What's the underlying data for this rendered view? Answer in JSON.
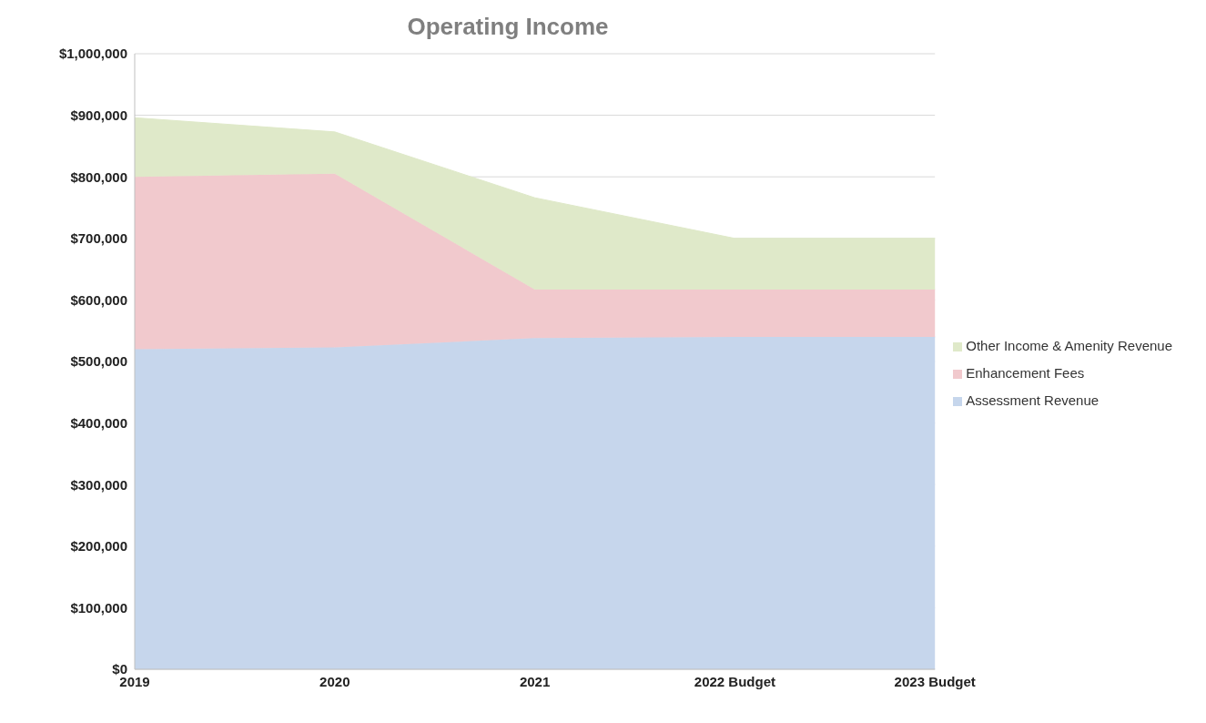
{
  "chart_data": {
    "type": "area",
    "title": "Operating Income",
    "stacked": true,
    "categories": [
      "2019",
      "2020",
      "2021",
      "2022 Budget",
      "2023 Budget"
    ],
    "series": [
      {
        "name": "Assessment Revenue",
        "color": "#c6d6ec",
        "values": [
          520000,
          523000,
          538000,
          540000,
          540000
        ]
      },
      {
        "name": "Enhancement Fees",
        "color": "#f1c9cd",
        "values": [
          280000,
          282000,
          79000,
          77000,
          77000
        ]
      },
      {
        "name": "Other Income & Amenity Revenue",
        "color": "#dfe9c9",
        "values": [
          96000,
          68000,
          149000,
          83000,
          83000
        ]
      }
    ],
    "ylim": [
      0,
      1000000
    ],
    "yticks": [
      {
        "value": 0,
        "label": "$0"
      },
      {
        "value": 100000,
        "label": "$100,000"
      },
      {
        "value": 200000,
        "label": "$200,000"
      },
      {
        "value": 300000,
        "label": "$300,000"
      },
      {
        "value": 400000,
        "label": "$400,000"
      },
      {
        "value": 500000,
        "label": "$500,000"
      },
      {
        "value": 600000,
        "label": "$600,000"
      },
      {
        "value": 700000,
        "label": "$700,000"
      },
      {
        "value": 800000,
        "label": "$800,000"
      },
      {
        "value": 900000,
        "label": "$900,000"
      },
      {
        "value": 1000000,
        "label": "$1,000,000"
      }
    ],
    "grid": "y",
    "legend": "right"
  }
}
